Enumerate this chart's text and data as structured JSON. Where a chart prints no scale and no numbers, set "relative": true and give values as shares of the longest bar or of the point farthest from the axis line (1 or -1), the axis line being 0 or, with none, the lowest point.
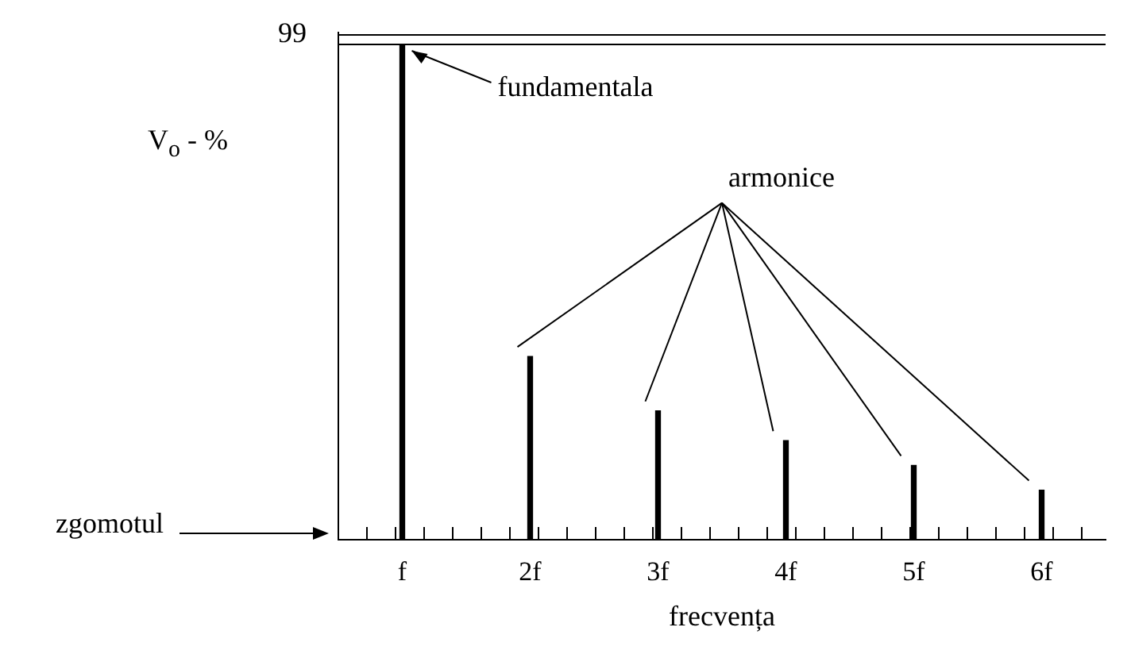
{
  "chart_data": {
    "type": "bar",
    "relative": true,
    "categories": [
      "f",
      "2f",
      "3f",
      "4f",
      "5f",
      "6f"
    ],
    "values": [
      1,
      0.37,
      0.26,
      0.2,
      0.15,
      0.1
    ],
    "color": "#000000",
    "ylabel": "V$_{o}$ - %",
    "xlabel": "frecvența",
    "annotations": [
      {
        "text": "fundamentala",
        "x": "f",
        "y": 1
      },
      "armonice",
      "zgomotul",
      "99"
    ],
    "grid": false,
    "legend": false
  }
}
